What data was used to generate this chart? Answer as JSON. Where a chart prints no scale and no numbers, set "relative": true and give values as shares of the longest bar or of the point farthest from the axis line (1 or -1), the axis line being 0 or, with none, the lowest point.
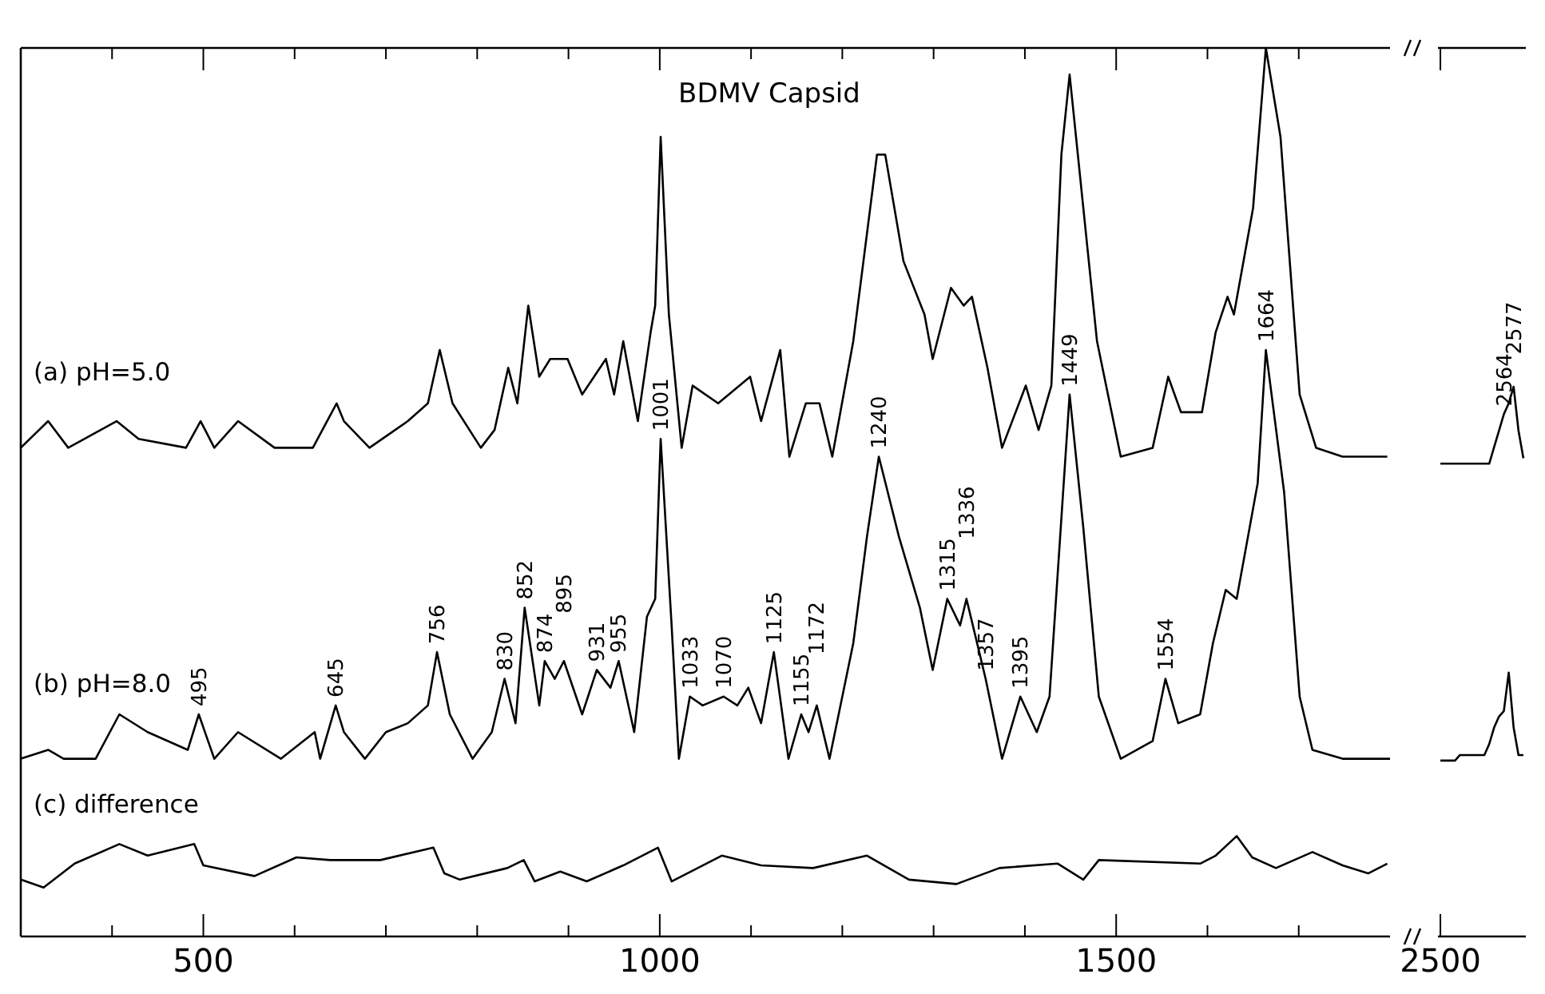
{
  "chart_data": [
    {
      "type": "line",
      "title": "BDMV Capsid",
      "relative": true,
      "tick_labels": "x",
      "line_style": "solid",
      "xlim": [
        300,
        1800
      ],
      "xticks": [
        {
          "value": 400,
          "label": null
        },
        500,
        {
          "value": 600,
          "label": null
        },
        {
          "value": 700,
          "label": null
        },
        {
          "value": 800,
          "label": null
        },
        {
          "value": 900,
          "label": null
        },
        1000,
        {
          "value": 1100,
          "label": null
        },
        {
          "value": 1200,
          "label": null
        },
        {
          "value": 1300,
          "label": null
        },
        {
          "value": 1400,
          "label": null
        },
        1500,
        {
          "value": 1600,
          "label": null
        },
        {
          "value": 1700,
          "label": null
        }
      ],
      "series": [
        {
          "name": "(a) pH=5.0",
          "color": "#000000",
          "x": [
            300,
            330,
            352,
            405,
            429,
            481,
            497,
            512,
            538,
            578,
            620,
            646,
            654,
            682,
            724,
            746,
            759,
            773,
            804,
            819,
            834,
            844,
            856,
            868,
            880,
            899,
            915,
            941,
            950,
            960,
            976,
            990,
            995,
            1001,
            1010,
            1024,
            1036,
            1064,
            1099,
            1111,
            1132,
            1142,
            1160,
            1175,
            1189,
            1212,
            1238,
            1247,
            1267,
            1290,
            1299,
            1319,
            1333,
            1342,
            1359,
            1375,
            1401,
            1415,
            1429,
            1440,
            1449,
            1458,
            1479,
            1505,
            1540,
            1557,
            1571,
            1594,
            1609,
            1622,
            1629,
            1650,
            1664,
            1680,
            1701,
            1719,
            1748,
            1797
          ],
          "values": [
            0.55,
            0.58,
            0.55,
            0.58,
            0.56,
            0.55,
            0.58,
            0.55,
            0.58,
            0.55,
            0.55,
            0.6,
            0.58,
            0.55,
            0.58,
            0.6,
            0.66,
            0.6,
            0.55,
            0.57,
            0.64,
            0.6,
            0.71,
            0.63,
            0.65,
            0.65,
            0.61,
            0.65,
            0.61,
            0.67,
            0.58,
            0.68,
            0.71,
            0.9,
            0.7,
            0.55,
            0.62,
            0.6,
            0.63,
            0.58,
            0.66,
            0.54,
            0.6,
            0.6,
            0.54,
            0.67,
            0.88,
            0.88,
            0.76,
            0.7,
            0.65,
            0.73,
            0.71,
            0.72,
            0.64,
            0.55,
            0.62,
            0.57,
            0.62,
            0.88,
            0.97,
            0.88,
            0.67,
            0.54,
            0.55,
            0.63,
            0.59,
            0.59,
            0.68,
            0.72,
            0.7,
            0.82,
            1,
            0.9,
            0.61,
            0.55,
            0.54,
            0.54
          ]
        },
        {
          "name": "(b) pH=8.0",
          "color": "#000000",
          "x": [
            300,
            330,
            347,
            382,
            408,
            439,
            483,
            495,
            512,
            538,
            585,
            622,
            628,
            645,
            654,
            677,
            700,
            724,
            746,
            756,
            770,
            795,
            816,
            830,
            842,
            852,
            868,
            874,
            885,
            895,
            915,
            931,
            946,
            955,
            972,
            986,
            995,
            1001,
            1013,
            1021,
            1033,
            1047,
            1070,
            1085,
            1097,
            1111,
            1125,
            1141,
            1155,
            1163,
            1172,
            1186,
            1212,
            1227,
            1240,
            1262,
            1285,
            1299,
            1315,
            1329,
            1336,
            1357,
            1375,
            1395,
            1413,
            1427,
            1449,
            1464,
            1481,
            1505,
            1540,
            1554,
            1568,
            1592,
            1606,
            1620,
            1632,
            1655,
            1664,
            1684,
            1701,
            1715,
            1748,
            1800
          ],
          "values": [
            0.2,
            0.21,
            0.2,
            0.2,
            0.25,
            0.23,
            0.21,
            0.25,
            0.2,
            0.23,
            0.2,
            0.23,
            0.2,
            0.26,
            0.23,
            0.2,
            0.23,
            0.24,
            0.26,
            0.32,
            0.25,
            0.2,
            0.23,
            0.29,
            0.24,
            0.37,
            0.26,
            0.31,
            0.29,
            0.31,
            0.25,
            0.3,
            0.28,
            0.31,
            0.23,
            0.36,
            0.38,
            0.56,
            0.35,
            0.2,
            0.27,
            0.26,
            0.27,
            0.26,
            0.28,
            0.24,
            0.32,
            0.2,
            0.25,
            0.23,
            0.26,
            0.2,
            0.33,
            0.45,
            0.54,
            0.45,
            0.37,
            0.3,
            0.38,
            0.35,
            0.38,
            0.29,
            0.2,
            0.27,
            0.23,
            0.27,
            0.61,
            0.46,
            0.27,
            0.2,
            0.22,
            0.29,
            0.24,
            0.25,
            0.33,
            0.39,
            0.38,
            0.51,
            0.66,
            0.5,
            0.27,
            0.21,
            0.2,
            0.2
          ]
        },
        {
          "name": "(c) difference",
          "color": "#000000",
          "x": [
            300,
            325,
            359,
            408,
            439,
            490,
            500,
            556,
            602,
            639,
            694,
            752,
            764,
            781,
            833,
            851,
            863,
            891,
            920,
            960,
            998,
            1013,
            1068,
            1111,
            1168,
            1227,
            1273,
            1325,
            1372,
            1436,
            1464,
            1481,
            1592,
            1609,
            1632,
            1649,
            1675,
            1715,
            1748,
            1776,
            1797
          ],
          "values": [
            0.064,
            0.055,
            0.082,
            0.104,
            0.091,
            0.104,
            0.08,
            0.068,
            0.089,
            0.086,
            0.086,
            0.1,
            0.071,
            0.064,
            0.077,
            0.086,
            0.062,
            0.073,
            0.062,
            0.08,
            0.1,
            0.062,
            0.091,
            0.08,
            0.077,
            0.091,
            0.064,
            0.059,
            0.077,
            0.082,
            0.064,
            0.086,
            0.082,
            0.091,
            0.113,
            0.089,
            0.077,
            0.095,
            0.08,
            0.071,
            0.082
          ]
        }
      ],
      "annotations": [
        {
          "text": "495",
          "x": 495,
          "y": 0.25
        },
        {
          "text": "645",
          "x": 645,
          "y": 0.26
        },
        {
          "text": "756",
          "x": 756,
          "y": 0.32
        },
        {
          "text": "830",
          "x": 830,
          "y": 0.29
        },
        {
          "text": "852",
          "x": 852,
          "y": 0.37
        },
        {
          "text": "874",
          "x": 874,
          "y": 0.31
        },
        {
          "text": "895",
          "x": 895,
          "y": 0.31
        },
        {
          "text": "931",
          "x": 931,
          "y": 0.3
        },
        {
          "text": "955",
          "x": 955,
          "y": 0.31
        },
        {
          "text": "1001",
          "x": 1001,
          "y": 0.56
        },
        {
          "text": "1033",
          "x": 1033,
          "y": 0.27
        },
        {
          "text": "1070",
          "x": 1070,
          "y": 0.27
        },
        {
          "text": "1125",
          "x": 1125,
          "y": 0.32
        },
        {
          "text": "1155",
          "x": 1155,
          "y": 0.25
        },
        {
          "text": "1172",
          "x": 1172,
          "y": 0.26
        },
        {
          "text": "1240",
          "x": 1240,
          "y": 0.54
        },
        {
          "text": "1315",
          "x": 1315,
          "y": 0.38
        },
        {
          "text": "1336",
          "x": 1336,
          "y": 0.38
        },
        {
          "text": "1357",
          "x": 1357,
          "y": 0.29
        },
        {
          "text": "1395",
          "x": 1395,
          "y": 0.27
        },
        {
          "text": "1449",
          "x": 1449,
          "y": 0.61
        },
        {
          "text": "1554",
          "x": 1554,
          "y": 0.29
        },
        {
          "text": "1664",
          "x": 1664,
          "y": 0.66
        }
      ]
    },
    {
      "type": "line",
      "relative": true,
      "tick_labels": "x",
      "line_style": "solid",
      "categories": [
        null,
        null,
        null,
        null,
        null,
        null,
        null,
        null,
        null,
        null,
        null,
        null,
        null,
        null,
        null,
        null,
        null,
        null
      ],
      "series": [
        {
          "color": "#000000",
          "values": [
            0.86,
            0.86,
            0.86,
            0.86,
            0.86,
            0.86,
            0.86,
            0.86,
            0.86,
            0.86,
            0.86,
            0.89,
            0.92,
            0.95,
            0.97,
            1,
            0.92,
            0.87
          ]
        },
        {
          "color": "#000000",
          "values": [
            0.32,
            0.32,
            0.32,
            0.32,
            0.33,
            0.33,
            0.33,
            0.33,
            0.33,
            0.33,
            0.35,
            0.38,
            0.4,
            0.41,
            0.48,
            0.38,
            0.33,
            0.33
          ]
        }
      ],
      "annotations": [
        "2500",
        {
          "text": "2564",
          "y": 0.95
        },
        {
          "text": "2577",
          "y": 1
        }
      ]
    }
  ]
}
